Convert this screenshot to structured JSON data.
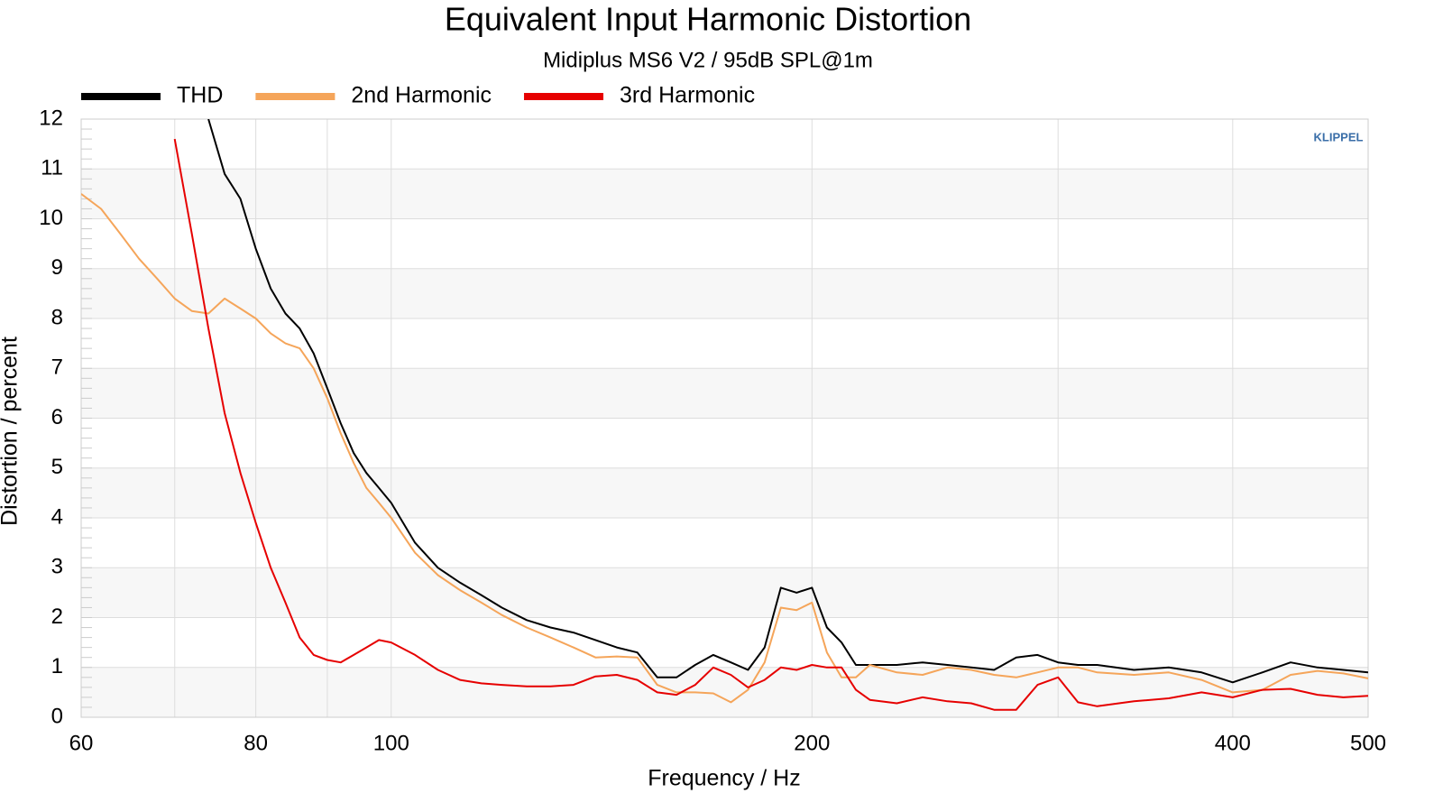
{
  "chart_data": {
    "type": "line",
    "title": "Equivalent Input Harmonic Distortion",
    "subtitle": "Midiplus MS6 V2 / 95dB SPL@1m",
    "xlabel": "Frequency / Hz",
    "ylabel": "Distortion / percent",
    "watermark": "KLIPPEL",
    "xscale": "log",
    "xlim": [
      60,
      500
    ],
    "xticks": [
      60,
      80,
      100,
      200,
      400,
      500
    ],
    "xgrid_minor": [
      70,
      90,
      300
    ],
    "ylim": [
      0,
      12
    ],
    "yticks": [
      0,
      1,
      2,
      3,
      4,
      5,
      6,
      7,
      8,
      9,
      10,
      11,
      12
    ],
    "grid": true,
    "banded": true,
    "legend": "top-left",
    "x": [
      60,
      62,
      64,
      66,
      68,
      70,
      72,
      74,
      76,
      78,
      80,
      82,
      84,
      86,
      88,
      90,
      92,
      94,
      96,
      98,
      100,
      104,
      108,
      112,
      116,
      120,
      125,
      130,
      135,
      140,
      145,
      150,
      155,
      160,
      165,
      170,
      175,
      180,
      185,
      190,
      195,
      200,
      205,
      210,
      215,
      220,
      230,
      240,
      250,
      260,
      270,
      280,
      290,
      300,
      310,
      320,
      340,
      360,
      380,
      400,
      420,
      440,
      460,
      480,
      500
    ],
    "series": [
      {
        "name": "THD",
        "color": "#000000",
        "values": [
          null,
          null,
          null,
          null,
          null,
          null,
          null,
          12.0,
          10.9,
          10.4,
          9.4,
          8.6,
          8.1,
          7.8,
          7.3,
          6.6,
          5.9,
          5.3,
          4.9,
          4.6,
          4.3,
          3.5,
          3.0,
          2.7,
          2.45,
          2.2,
          1.95,
          1.8,
          1.7,
          1.55,
          1.4,
          1.3,
          0.8,
          0.8,
          1.05,
          1.25,
          1.1,
          0.95,
          1.4,
          2.6,
          2.5,
          2.6,
          1.8,
          1.5,
          1.05,
          1.05,
          1.05,
          1.1,
          1.05,
          1.0,
          0.95,
          1.2,
          1.25,
          1.1,
          1.05,
          1.05,
          0.95,
          1.0,
          0.9,
          0.7,
          0.9,
          1.1,
          1.0,
          0.95,
          0.9
        ]
      },
      {
        "name": "2nd Harmonic",
        "color": "#f5a55a",
        "values": [
          10.5,
          10.2,
          9.7,
          9.2,
          8.8,
          8.4,
          8.15,
          8.1,
          8.4,
          8.2,
          8.0,
          7.7,
          7.5,
          7.4,
          7.0,
          6.4,
          5.7,
          5.1,
          4.6,
          4.3,
          4.0,
          3.3,
          2.85,
          2.55,
          2.3,
          2.05,
          1.8,
          1.6,
          1.4,
          1.2,
          1.22,
          1.2,
          0.65,
          0.5,
          0.5,
          0.48,
          0.3,
          0.55,
          1.1,
          2.2,
          2.15,
          2.3,
          1.3,
          0.8,
          0.8,
          1.05,
          0.9,
          0.85,
          1.0,
          0.95,
          0.85,
          0.8,
          0.9,
          1.0,
          1.0,
          0.9,
          0.85,
          0.9,
          0.75,
          0.5,
          0.55,
          0.85,
          0.93,
          0.88,
          0.78
        ]
      },
      {
        "name": "3rd Harmonic",
        "color": "#e60000",
        "values": [
          null,
          null,
          null,
          null,
          null,
          11.6,
          9.7,
          7.8,
          6.1,
          4.9,
          3.9,
          3.0,
          2.3,
          1.6,
          1.25,
          1.15,
          1.1,
          1.25,
          1.4,
          1.55,
          1.5,
          1.25,
          0.95,
          0.75,
          0.68,
          0.65,
          0.62,
          0.62,
          0.65,
          0.82,
          0.85,
          0.75,
          0.5,
          0.45,
          0.65,
          1.0,
          0.85,
          0.6,
          0.75,
          1.0,
          0.95,
          1.05,
          1.0,
          1.0,
          0.55,
          0.35,
          0.28,
          0.4,
          0.32,
          0.28,
          0.15,
          0.15,
          0.65,
          0.8,
          0.3,
          0.22,
          0.32,
          0.38,
          0.5,
          0.4,
          0.55,
          0.57,
          0.45,
          0.4,
          0.43
        ]
      }
    ]
  }
}
